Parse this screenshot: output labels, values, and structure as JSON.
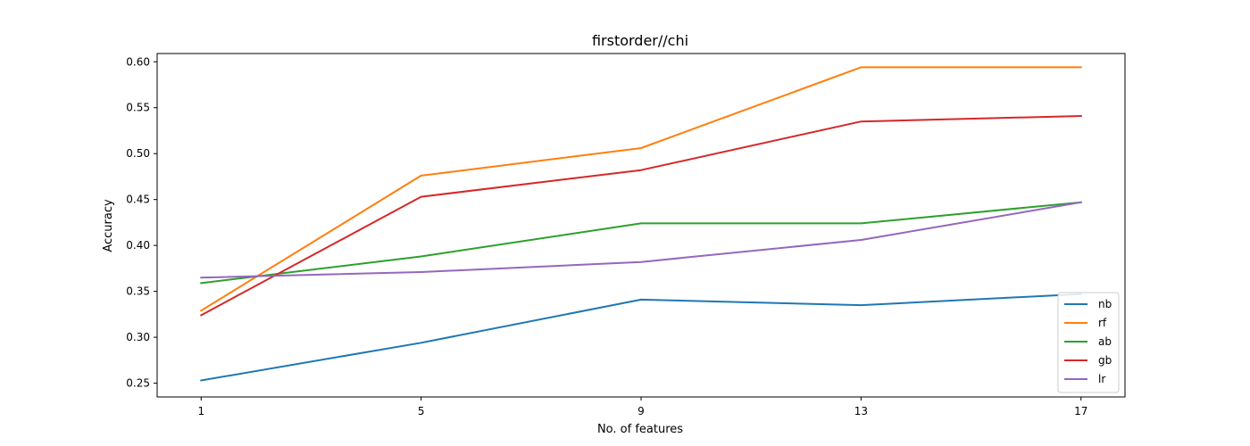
{
  "chart_data": {
    "type": "line",
    "title": "firstorder//chi",
    "xlabel": "No. of features",
    "ylabel": "Accuracy",
    "x": [
      1,
      5,
      9,
      13,
      17
    ],
    "xticks": [
      "1",
      "5",
      "9",
      "13",
      "17"
    ],
    "yticks": [
      "0.25",
      "0.30",
      "0.35",
      "0.40",
      "0.45",
      "0.50",
      "0.55",
      "0.60"
    ],
    "xlim": [
      0.2,
      17.8
    ],
    "ylim": [
      0.235,
      0.609
    ],
    "grid": false,
    "legend_position": "lower-right",
    "series": [
      {
        "name": "nb",
        "color": "#1f77b4",
        "values": [
          0.253,
          0.294,
          0.341,
          0.335,
          0.347
        ]
      },
      {
        "name": "rf",
        "color": "#ff7f0e",
        "values": [
          0.329,
          0.476,
          0.506,
          0.594,
          0.594
        ]
      },
      {
        "name": "ab",
        "color": "#2ca02c",
        "values": [
          0.359,
          0.388,
          0.424,
          0.424,
          0.447
        ]
      },
      {
        "name": "gb",
        "color": "#d62728",
        "values": [
          0.324,
          0.453,
          0.482,
          0.535,
          0.541
        ]
      },
      {
        "name": "lr",
        "color": "#9467bd",
        "values": [
          0.365,
          0.371,
          0.382,
          0.406,
          0.447
        ]
      }
    ]
  }
}
